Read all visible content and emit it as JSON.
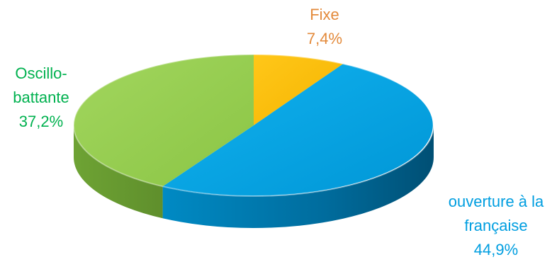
{
  "chart_data": {
    "type": "pie",
    "title": "",
    "style": "3d-tilted",
    "slices": [
      {
        "label_lines": [
          "Fixe"
        ],
        "value_text": "7,4%",
        "value": 7.4,
        "color": "#fbbd00",
        "label_color": "#e38a3b"
      },
      {
        "label_lines": [
          "ouverture à la",
          "française"
        ],
        "value_text": "44,9%",
        "value": 44.9,
        "color": "#00a7e8",
        "label_color": "#009ee0"
      },
      {
        "label_lines": [
          "Oscillo-",
          "battante"
        ],
        "value_text": "37,2%",
        "value": 37.2,
        "color": "#8fcb4a",
        "label_color": "#00b14f"
      }
    ]
  }
}
